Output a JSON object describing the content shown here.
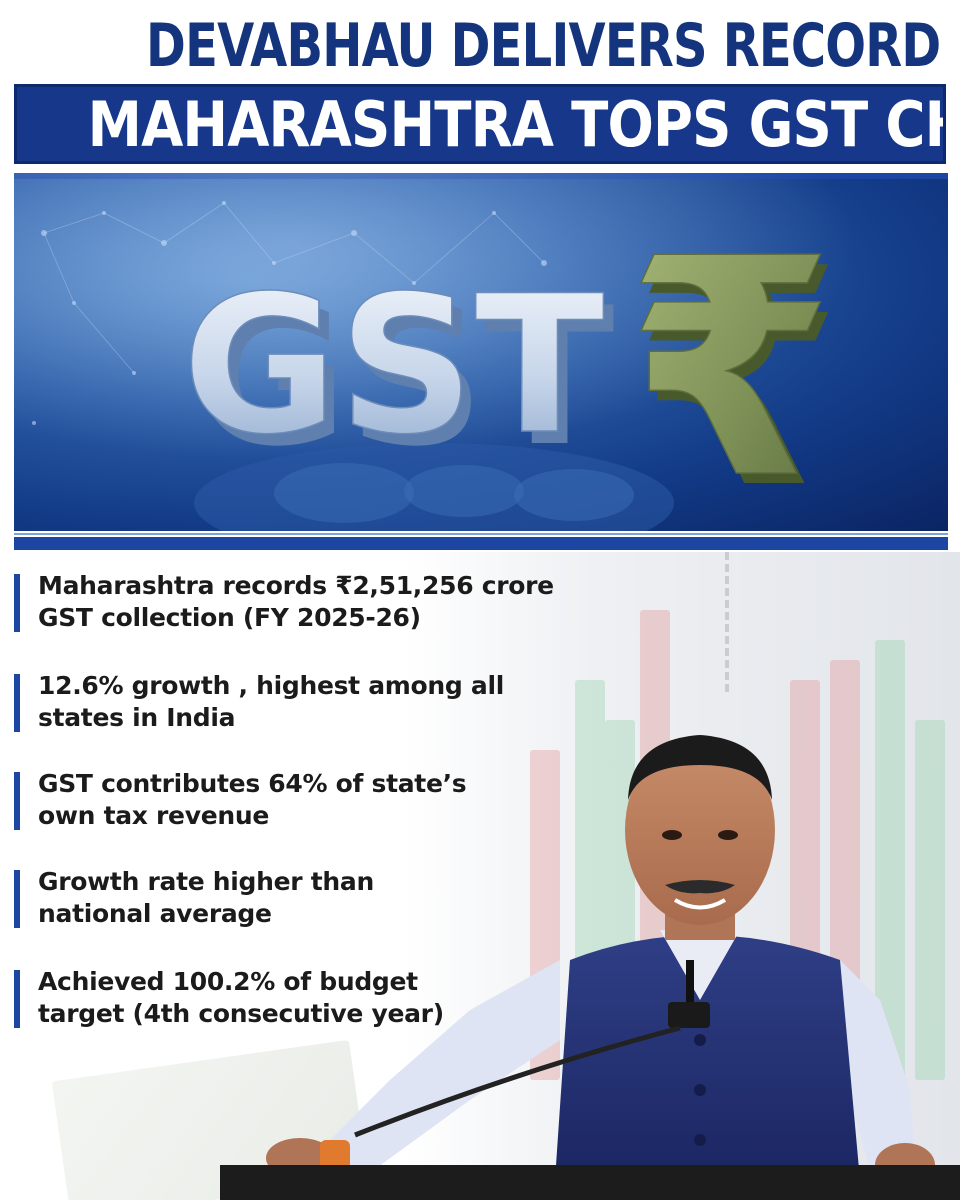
{
  "headline": {
    "line1": "DEVABHAU DELIVERS RECORD REVENUE",
    "line2": "MAHARASHTRA TOPS GST CHARTS"
  },
  "banner": {
    "gst_text": "GST",
    "rupee_symbol": "₹"
  },
  "facts": [
    {
      "text": "Maharashtra records ₹2,51,256 crore\nGST collection (FY 2025-26)"
    },
    {
      "text": "12.6% growth , highest among all\nstates in India"
    },
    {
      "text": "GST contributes 64% of state’s\nown tax revenue"
    },
    {
      "text": "Growth rate higher than\nnational average"
    },
    {
      "text": "Achieved 100.2% of budget\ntarget (4th consecutive year)"
    }
  ],
  "colors": {
    "brand_blue": "#17388a",
    "accent_blue": "#1d46a3",
    "text_dark": "#1b1b1b"
  }
}
